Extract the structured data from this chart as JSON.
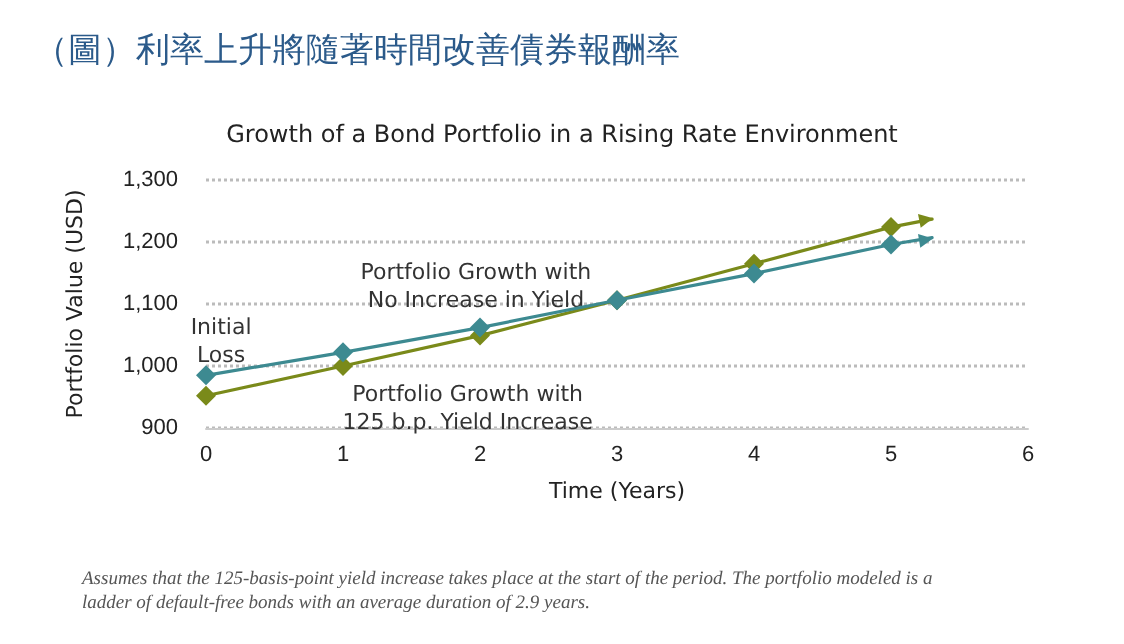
{
  "chart_data": {
    "type": "line",
    "title": "（圖）利率上升將隨著時間改善債券報酬率",
    "subtitle": "Growth of a Bond Portfolio in a Rising Rate Environment",
    "xlabel": "Time (Years)",
    "ylabel": "Portfolio Value (USD)",
    "series": [
      {
        "color": "#3d8a91",
        "x": [
          0,
          1,
          2,
          3,
          4,
          5,
          5.3
        ],
        "values": [
          985,
          1022,
          1062,
          1106,
          1149,
          1196,
          1207
        ]
      },
      {
        "color": "#7a8a1a",
        "x": [
          0,
          1,
          2,
          3,
          4,
          5,
          5.3
        ],
        "values": [
          952,
          1000,
          1049,
          1106,
          1165,
          1224,
          1237
        ]
      }
    ],
    "xlim": [
      0,
      6
    ],
    "xticks": [
      0,
      1,
      2,
      3,
      4,
      5,
      6
    ],
    "ylim": [
      900,
      1300
    ],
    "yticks": [
      900,
      {
        "value": 1000,
        "label": "1,000"
      },
      {
        "value": 1100,
        "label": "1,100"
      },
      {
        "value": 1200,
        "label": "1,200"
      },
      {
        "value": 1300,
        "label": "1,300"
      }
    ],
    "grid": "y",
    "marker": "diamond",
    "line_style": "solid",
    "annotations": [
      "Initial\nLoss",
      "Portfolio Growth with\nNo Increase in Yield",
      "Portfolio Growth with\n125 b.p. Yield Increase",
      "Assumes that the 125-basis-point yield increase takes place at the start of the period. The portfolio modeled is a\nladder of default-free bonds with an average duration of 2.9 years."
    ]
  }
}
